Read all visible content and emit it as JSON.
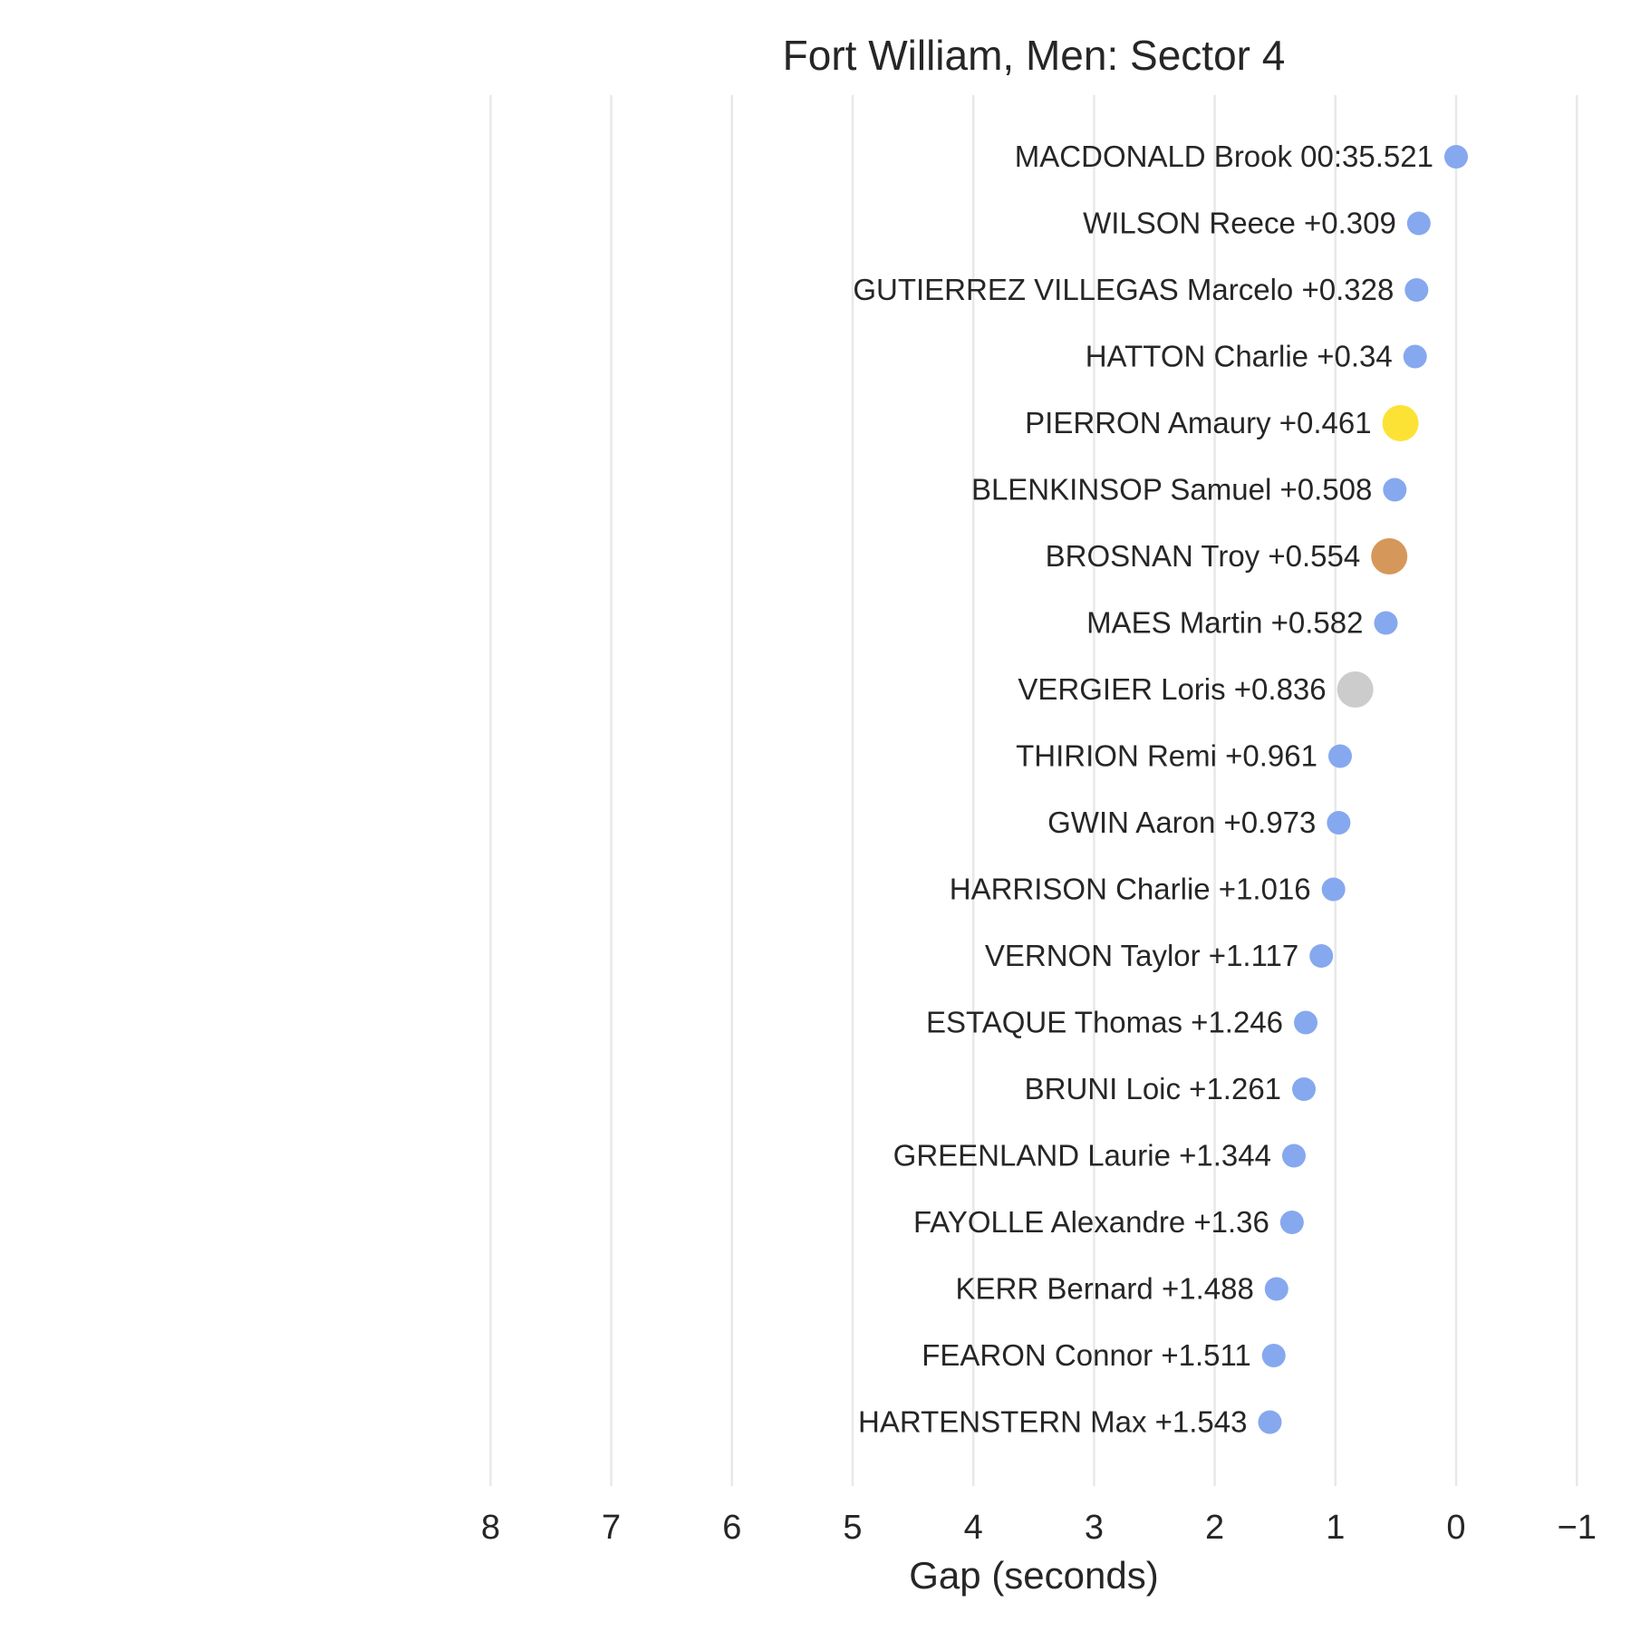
{
  "chart_data": {
    "type": "scatter",
    "title": "Fort William, Men: Sector 4",
    "xlabel": "Gap (seconds)",
    "ylabel": "",
    "xlim": [
      8,
      -1
    ],
    "x_inverted": true,
    "xticks": [
      8,
      7,
      6,
      5,
      4,
      3,
      2,
      1,
      0,
      -1
    ],
    "xtick_labels": [
      "8",
      "7",
      "6",
      "5",
      "4",
      "3",
      "2",
      "1",
      "0",
      "−1"
    ],
    "grid": "vertical",
    "colors": {
      "default": "#86a8ee",
      "gold": "#fde236",
      "silver": "#cccccc",
      "bronze": "#d6975a"
    },
    "points": [
      {
        "label": "MACDONALD Brook 00:35.521",
        "x": 0.0,
        "highlight": "default"
      },
      {
        "label": "WILSON Reece +0.309",
        "x": 0.309,
        "highlight": "default"
      },
      {
        "label": "GUTIERREZ VILLEGAS Marcelo +0.328",
        "x": 0.328,
        "highlight": "default"
      },
      {
        "label": "HATTON Charlie +0.34",
        "x": 0.34,
        "highlight": "default"
      },
      {
        "label": "PIERRON Amaury +0.461",
        "x": 0.461,
        "highlight": "gold"
      },
      {
        "label": "BLENKINSOP Samuel +0.508",
        "x": 0.508,
        "highlight": "default"
      },
      {
        "label": "BROSNAN Troy +0.554",
        "x": 0.554,
        "highlight": "bronze"
      },
      {
        "label": "MAES Martin +0.582",
        "x": 0.582,
        "highlight": "default"
      },
      {
        "label": "VERGIER Loris +0.836",
        "x": 0.836,
        "highlight": "silver"
      },
      {
        "label": "THIRION Remi +0.961",
        "x": 0.961,
        "highlight": "default"
      },
      {
        "label": "GWIN Aaron +0.973",
        "x": 0.973,
        "highlight": "default"
      },
      {
        "label": "HARRISON Charlie +1.016",
        "x": 1.016,
        "highlight": "default"
      },
      {
        "label": "VERNON Taylor +1.117",
        "x": 1.117,
        "highlight": "default"
      },
      {
        "label": "ESTAQUE Thomas +1.246",
        "x": 1.246,
        "highlight": "default"
      },
      {
        "label": "BRUNI Loic +1.261",
        "x": 1.261,
        "highlight": "default"
      },
      {
        "label": "GREENLAND Laurie +1.344",
        "x": 1.344,
        "highlight": "default"
      },
      {
        "label": "FAYOLLE Alexandre +1.36",
        "x": 1.36,
        "highlight": "default"
      },
      {
        "label": "KERR Bernard +1.488",
        "x": 1.488,
        "highlight": "default"
      },
      {
        "label": "FEARON Connor +1.511",
        "x": 1.511,
        "highlight": "default"
      },
      {
        "label": "HARTENSTERN Max +1.543",
        "x": 1.543,
        "highlight": "default"
      }
    ]
  }
}
